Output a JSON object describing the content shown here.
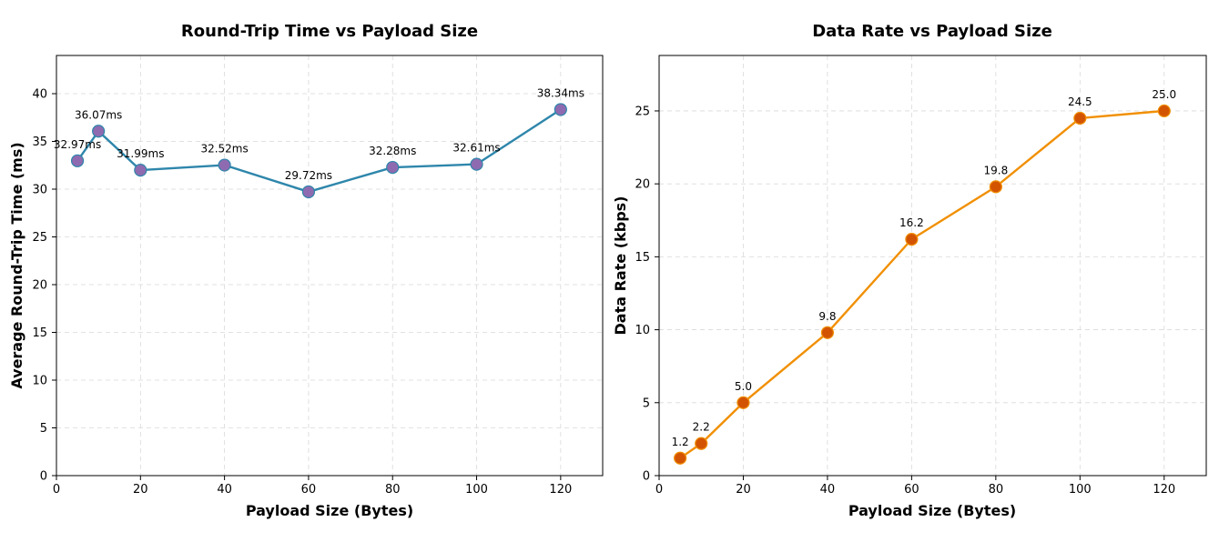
{
  "chart_data": [
    {
      "type": "line",
      "title": "Round-Trip Time vs Payload Size",
      "xlabel": "Payload Size (Bytes)",
      "ylabel": "Average Round-Trip Time (ms)",
      "x": [
        5,
        10,
        20,
        40,
        60,
        80,
        100,
        120
      ],
      "values": [
        32.97,
        36.07,
        31.99,
        32.52,
        29.72,
        32.28,
        32.61,
        38.34
      ],
      "data_labels": [
        "32.97ms",
        "36.07ms",
        "31.99ms",
        "32.52ms",
        "29.72ms",
        "32.28ms",
        "32.61ms",
        "38.34ms"
      ],
      "xlim": [
        0,
        130
      ],
      "ylim": [
        0,
        44
      ],
      "xticks": [
        0,
        20,
        40,
        60,
        80,
        100,
        120
      ],
      "xtick_labels": [
        "0",
        "20",
        "40",
        "60",
        "80",
        "100",
        "120"
      ],
      "yticks": [
        0,
        5,
        10,
        15,
        20,
        25,
        30,
        35,
        40
      ],
      "ytick_labels": [
        "0",
        "5",
        "10",
        "15",
        "20",
        "25",
        "30",
        "35",
        "40"
      ],
      "grid": true,
      "line_color": "#2e86ab",
      "marker_color": "#8e6bb0"
    },
    {
      "type": "line",
      "title": "Data Rate vs Payload Size",
      "xlabel": "Payload Size (Bytes)",
      "ylabel": "Data Rate (kbps)",
      "x": [
        5,
        10,
        20,
        40,
        60,
        80,
        100,
        120
      ],
      "values": [
        1.2,
        2.2,
        5.0,
        9.8,
        16.2,
        19.8,
        24.5,
        25.0
      ],
      "data_labels": [
        "1.2",
        "2.2",
        "5.0",
        "9.8",
        "16.2",
        "19.8",
        "24.5",
        "25.0"
      ],
      "xlim": [
        0,
        130
      ],
      "ylim": [
        0,
        28.8
      ],
      "xticks": [
        0,
        20,
        40,
        60,
        80,
        100,
        120
      ],
      "xtick_labels": [
        "0",
        "20",
        "40",
        "60",
        "80",
        "100",
        "120"
      ],
      "yticks": [
        0,
        5,
        10,
        15,
        20,
        25
      ],
      "ytick_labels": [
        "0",
        "5",
        "10",
        "15",
        "20",
        "25"
      ],
      "grid": true,
      "line_color": "#f18f01",
      "marker_color": "#d35400"
    }
  ]
}
